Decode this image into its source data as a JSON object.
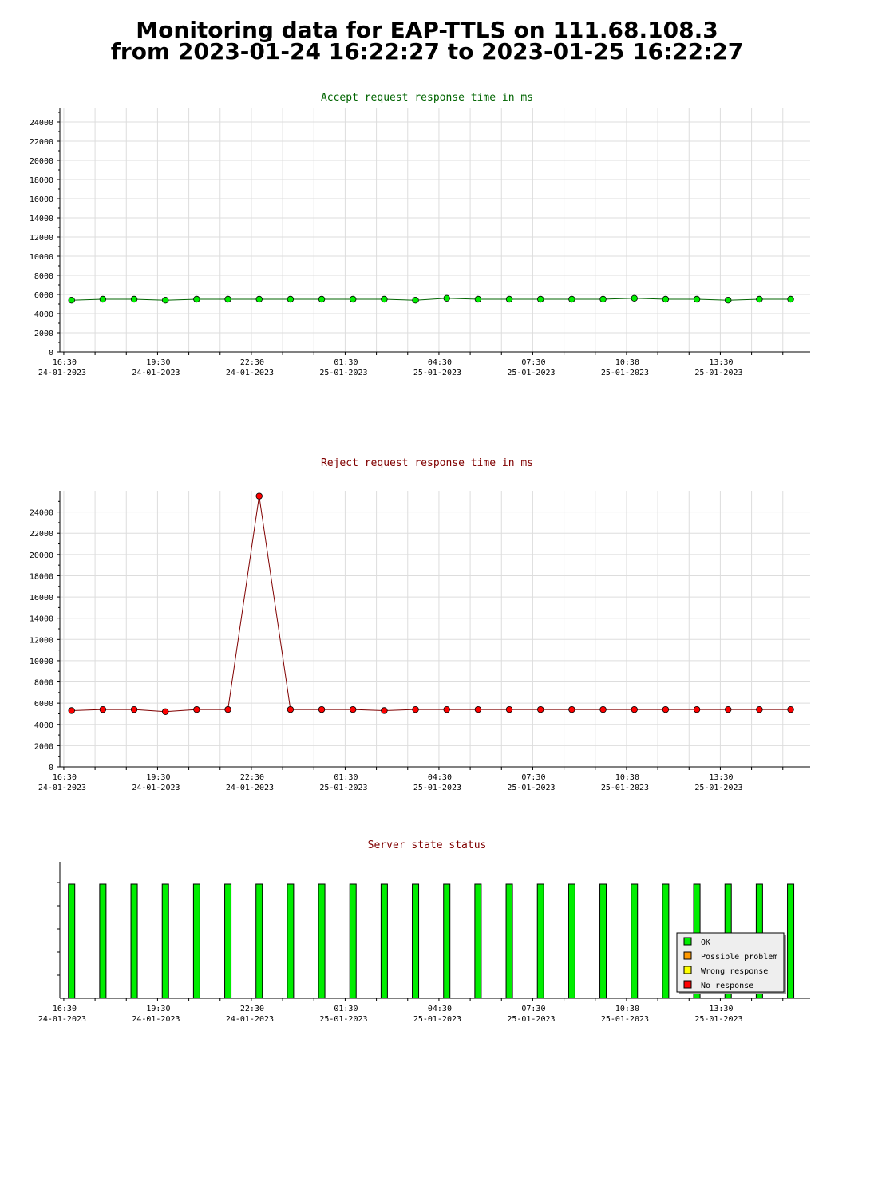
{
  "page": {
    "title_line1": "Monitoring data for EAP-TTLS on 111.68.108.3",
    "title_line2": "from 2023-01-24 16:22:27 to 2023-01-25 16:22:27"
  },
  "colors": {
    "accept_title": "#006400",
    "reject_title": "#800000",
    "status_title": "#800000",
    "accept_marker": "#00ee00",
    "accept_line": "#006400",
    "reject_marker": "#ff0000",
    "reject_line": "#800000",
    "ok": "#00ee00",
    "possible_problem": "#ff9900",
    "wrong_response": "#ffff00",
    "no_response": "#ff0000",
    "grid": "#dddddd"
  },
  "x_ticks": [
    {
      "time": "16:30",
      "date": "24-01-2023"
    },
    {
      "time": "19:30",
      "date": "24-01-2023"
    },
    {
      "time": "22:30",
      "date": "24-01-2023"
    },
    {
      "time": "01:30",
      "date": "25-01-2023"
    },
    {
      "time": "04:30",
      "date": "25-01-2023"
    },
    {
      "time": "07:30",
      "date": "25-01-2023"
    },
    {
      "time": "10:30",
      "date": "25-01-2023"
    },
    {
      "time": "13:30",
      "date": "25-01-2023"
    }
  ],
  "chart_data": [
    {
      "id": "accept",
      "type": "line",
      "title": "Accept request response time in ms",
      "x": [
        "2023-01-24 16:45",
        "2023-01-24 17:45",
        "2023-01-24 18:45",
        "2023-01-24 19:45",
        "2023-01-24 20:45",
        "2023-01-24 21:45",
        "2023-01-24 22:45",
        "2023-01-24 23:45",
        "2023-01-25 00:45",
        "2023-01-25 01:45",
        "2023-01-25 02:45",
        "2023-01-25 03:45",
        "2023-01-25 04:45",
        "2023-01-25 05:45",
        "2023-01-25 06:45",
        "2023-01-25 07:45",
        "2023-01-25 08:45",
        "2023-01-25 09:45",
        "2023-01-25 10:45",
        "2023-01-25 11:45",
        "2023-01-25 12:45",
        "2023-01-25 13:45",
        "2023-01-25 14:45",
        "2023-01-25 15:45"
      ],
      "values": [
        5400,
        5500,
        5500,
        5400,
        5500,
        5500,
        5500,
        5500,
        5500,
        5500,
        5500,
        5400,
        5600,
        5500,
        5500,
        5500,
        5500,
        5500,
        5600,
        5500,
        5500,
        5400,
        5500,
        5500
      ],
      "ylim": [
        0,
        25500
      ],
      "y_ticks": [
        0,
        2000,
        4000,
        6000,
        8000,
        10000,
        12000,
        14000,
        16000,
        18000,
        20000,
        22000,
        24000
      ],
      "grid": true
    },
    {
      "id": "reject",
      "type": "line",
      "title": "Reject request response time in ms",
      "x": [
        "2023-01-24 16:45",
        "2023-01-24 17:45",
        "2023-01-24 18:45",
        "2023-01-24 19:45",
        "2023-01-24 20:45",
        "2023-01-24 21:45",
        "2023-01-24 22:45",
        "2023-01-24 23:45",
        "2023-01-25 00:45",
        "2023-01-25 01:45",
        "2023-01-25 02:45",
        "2023-01-25 03:45",
        "2023-01-25 04:45",
        "2023-01-25 05:45",
        "2023-01-25 06:45",
        "2023-01-25 07:45",
        "2023-01-25 08:45",
        "2023-01-25 09:45",
        "2023-01-25 10:45",
        "2023-01-25 11:45",
        "2023-01-25 12:45",
        "2023-01-25 13:45",
        "2023-01-25 14:45",
        "2023-01-25 15:45"
      ],
      "values": [
        5300,
        5400,
        5400,
        5200,
        5400,
        5400,
        25500,
        5400,
        5400,
        5400,
        5300,
        5400,
        5400,
        5400,
        5400,
        5400,
        5400,
        5400,
        5400,
        5400,
        5400,
        5400,
        5400,
        5400
      ],
      "ylim": [
        0,
        26000
      ],
      "y_ticks": [
        0,
        2000,
        4000,
        6000,
        8000,
        10000,
        12000,
        14000,
        16000,
        18000,
        20000,
        22000,
        24000
      ],
      "grid": true
    },
    {
      "id": "status",
      "type": "bar",
      "title": "Server state status",
      "x": [
        "2023-01-24 16:45",
        "2023-01-24 17:45",
        "2023-01-24 18:45",
        "2023-01-24 19:45",
        "2023-01-24 20:45",
        "2023-01-24 21:45",
        "2023-01-24 22:45",
        "2023-01-24 23:45",
        "2023-01-25 00:45",
        "2023-01-25 01:45",
        "2023-01-25 02:45",
        "2023-01-25 03:45",
        "2023-01-25 04:45",
        "2023-01-25 05:45",
        "2023-01-25 06:45",
        "2023-01-25 07:45",
        "2023-01-25 08:45",
        "2023-01-25 09:45",
        "2023-01-25 10:45",
        "2023-01-25 11:45",
        "2023-01-25 12:45",
        "2023-01-25 13:45",
        "2023-01-25 14:45",
        "2023-01-25 15:45"
      ],
      "states": [
        "OK",
        "OK",
        "OK",
        "OK",
        "OK",
        "OK",
        "OK",
        "OK",
        "OK",
        "OK",
        "OK",
        "OK",
        "OK",
        "OK",
        "OK",
        "OK",
        "OK",
        "OK",
        "OK",
        "OK",
        "OK",
        "OK",
        "OK",
        "OK"
      ],
      "legend": [
        "OK",
        "Possible problem",
        "Wrong response",
        "No response"
      ],
      "legend_position": "bottom-right",
      "grid": false
    }
  ]
}
